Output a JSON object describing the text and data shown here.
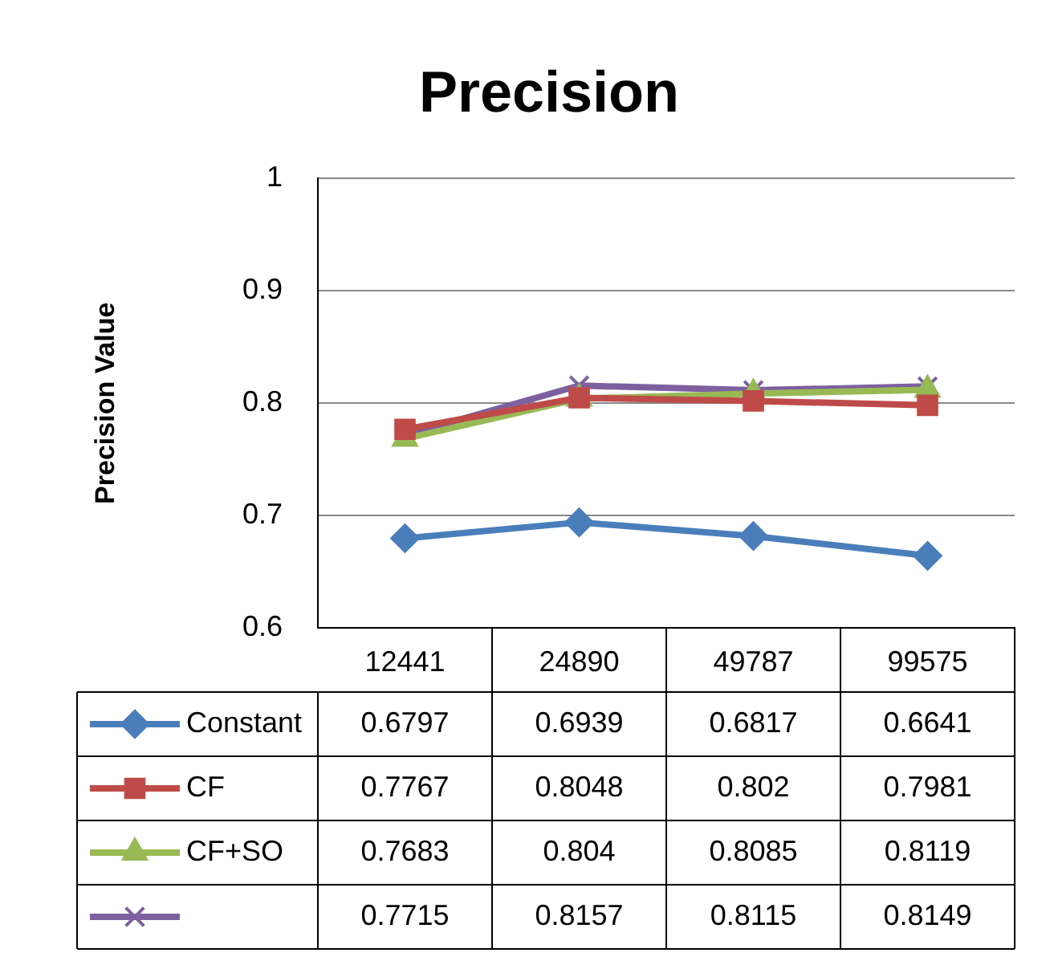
{
  "chart_data": {
    "type": "line",
    "title": "Precision",
    "ylabel": "Precision Value",
    "categories": [
      "12441",
      "24890",
      "49787",
      "99575"
    ],
    "series": [
      {
        "name": "Constant",
        "color": "#4a7ebb",
        "marker": "diamond",
        "values": [
          0.6797,
          0.6939,
          0.6817,
          0.6641
        ]
      },
      {
        "name": "CF",
        "color": "#be4b48",
        "marker": "square",
        "values": [
          0.7767,
          0.8048,
          0.802,
          0.7981
        ]
      },
      {
        "name": "CF+SO",
        "color": "#98b954",
        "marker": "triangle",
        "values": [
          0.7683,
          0.804,
          0.8085,
          0.8119
        ]
      },
      {
        "color": "#7d60a0",
        "marker": "cross",
        "values": [
          0.7715,
          0.8157,
          0.8115,
          0.8149
        ]
      }
    ],
    "ylim": [
      0.6,
      1
    ],
    "yticks": [
      0.6,
      0.7,
      0.8,
      0.9,
      1
    ],
    "grid": "y",
    "legend": "bottom",
    "data_labels": true
  }
}
